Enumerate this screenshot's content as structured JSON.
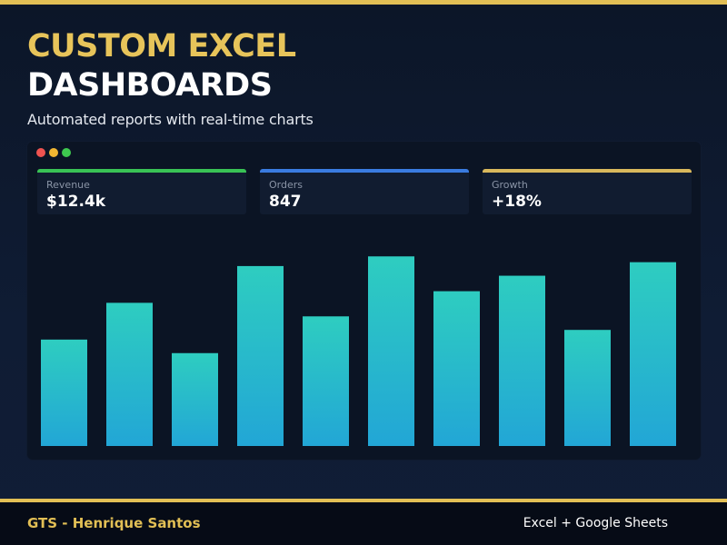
{
  "colors": {
    "gold": "#e2bf55",
    "background": "#0c1628",
    "panel": "#0b1424",
    "bar_top": "#2ecdc0",
    "bar_bottom": "#22a6d6"
  },
  "header": {
    "title_line1": "CUSTOM EXCEL",
    "title_line2": "DASHBOARDS",
    "subtitle": "Automated reports with real-time charts"
  },
  "window": {
    "controls": [
      "close",
      "minimize",
      "maximize"
    ]
  },
  "kpis": [
    {
      "label": "Revenue",
      "value": "$12.4k",
      "accent": "#39c255"
    },
    {
      "label": "Orders",
      "value": "847",
      "accent": "#3a7be0"
    },
    {
      "label": "Growth",
      "value": "+18%",
      "accent": "#d9b85c"
    }
  ],
  "chart_data": {
    "type": "bar",
    "values": [
      55,
      74,
      48,
      93,
      67,
      98,
      80,
      88,
      60,
      95
    ],
    "ylim": [
      0,
      100
    ],
    "grid": false,
    "legend": "none"
  },
  "footer": {
    "brand": "GTS - Henrique Santos",
    "tools": "Excel + Google Sheets"
  }
}
